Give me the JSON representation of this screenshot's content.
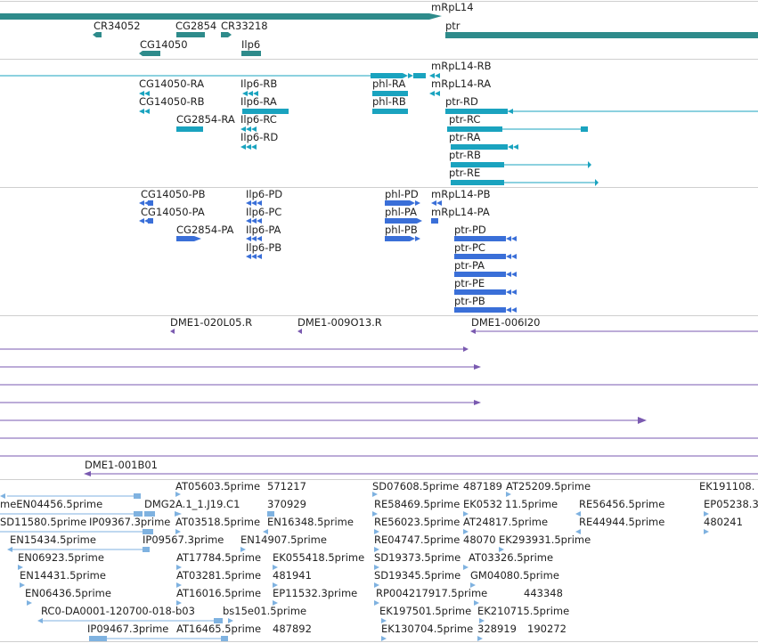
{
  "colors": {
    "gene": "#2e8b8b",
    "transcript": "#1aa3bf",
    "cds": "#3a6fd8",
    "clone": "#7a5ab0",
    "est": "#7fb2e0",
    "separator": "#cfcfcf"
  },
  "tracks": {
    "genes": {
      "labels": [
        "mRpL14",
        "CR34052",
        "CG2854",
        "CR33218",
        "ptr",
        "CG14050",
        "Ilp6"
      ]
    },
    "transcripts": {
      "labels": [
        "mRpL14-RB",
        "CG14050-RA",
        "Ilp6-RB",
        "phl-RA",
        "mRpL14-RA",
        "CG14050-RB",
        "Ilp6-RA",
        "phl-RB",
        "ptr-RD",
        "CG2854-RA",
        "Ilp6-RC",
        "ptr-RC",
        "Ilp6-RD",
        "ptr-RA",
        "ptr-RB",
        "ptr-RE"
      ]
    },
    "proteins": {
      "labels": [
        "CG14050-PB",
        "Ilp6-PD",
        "phl-PD",
        "mRpL14-PB",
        "CG14050-PA",
        "Ilp6-PC",
        "phl-PA",
        "mRpL14-PA",
        "CG2854-PA",
        "Ilp6-PA",
        "phl-PB",
        "ptr-PD",
        "Ilp6-PB",
        "ptr-PC",
        "ptr-PA",
        "ptr-PE",
        "ptr-PB"
      ]
    },
    "clones": {
      "labels": [
        "DME1-020L05.R",
        "DME1-009O13.R",
        "DME1-006I20",
        "DME1-001B01"
      ]
    },
    "ests": {
      "labels": [
        "AT05603.5prime",
        "571217",
        "SD07608.5prime",
        "487189",
        "AT25209.5prime",
        "EK191108.",
        "meEN04456.5prime",
        "DMG2A.1_1.J19.C1",
        "370929",
        "RE58469.5prime",
        "EK0532",
        "11.5prime",
        "RE56456.5prime",
        "EP05238.3",
        "SD11580.5prime",
        "IP09367.3prime",
        "AT03518.5prime",
        "EN16348.5prime",
        "RE56023.5prime",
        "AT24817.5prime",
        "RE44944.5prime",
        "480241",
        "EN15434.5prime",
        "IP09567.3prime",
        "EN14907.5prime",
        "RE04747.5prime",
        "48070",
        "EK293931.5prime",
        "EN06923.5prime",
        "AT17784.5prime",
        "EK055418.5prime",
        "SD19373.5prime",
        "AT03326.5prime",
        "EN14431.5prime",
        "AT03281.5prime",
        "481941",
        "SD19345.5prime",
        "GM04080.5prime",
        "EN06436.5prime",
        "AT16016.5prime",
        "EP11532.3prime",
        "RP004217917.5prime",
        "443348",
        "RC0-DA0001-120700-018-b03",
        "bs15e01.5prime",
        "EK197501.5prime",
        "EK210715.5prime",
        "IP09467.3prime",
        "AT16465.5prime",
        "487892",
        "EK130704.5prime",
        "328919",
        "190272"
      ]
    }
  }
}
